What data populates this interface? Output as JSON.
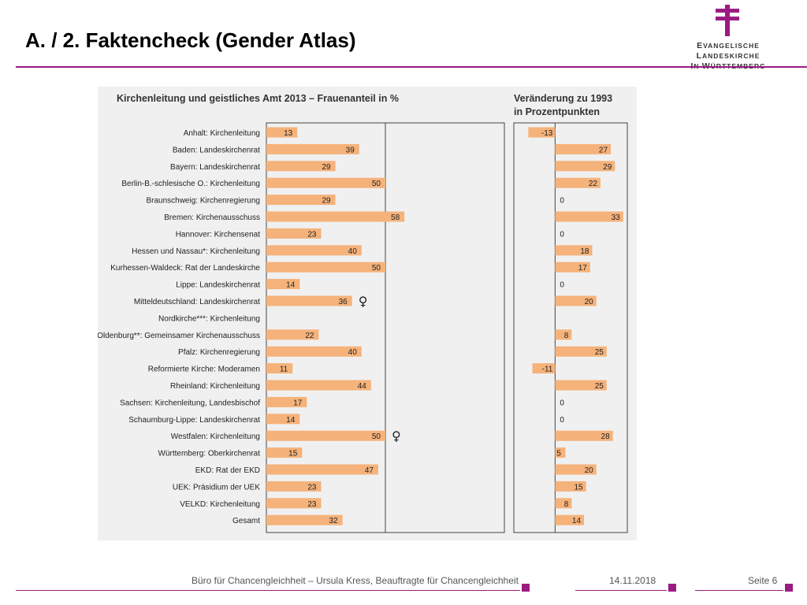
{
  "header": {
    "title": "A. / 2. Faktencheck (Gender Atlas)",
    "logo_line1_caps": [
      "E",
      "L"
    ],
    "logo_line1_rest": [
      "VANGELISCHE ",
      "ANDESKIRCHE"
    ],
    "logo_line2_caps": [
      "I",
      "W"
    ],
    "logo_line2_rest": [
      "N ",
      "ÜRTTEMBERG"
    ],
    "logo_color": "#9b1b82"
  },
  "chart_data": {
    "type": "bar",
    "left_title": "Kirchenleitung und geistliches Amt 2013 – Frauenanteil in %",
    "right_title_line1": "Veränderung zu 1993",
    "right_title_line2": "in Prozentpunkten",
    "bar_color": "#f5b27a",
    "categories": [
      "Anhalt: Kirchenleitung",
      "Baden: Landeskirchenrat",
      "Bayern: Landeskirchenrat",
      "Berlin-B.-schlesische O.: Kirchenleitung",
      "Braunschweig: Kirchenregierung",
      "Bremen: Kirchenausschuss",
      "Hannover: Kirchensenat",
      "Hessen und Nassau*: Kirchenleitung",
      "Kurhessen-Waldeck: Rat der Landeskirche",
      "Lippe: Landeskirchenrat",
      "Mitteldeutschland: Landeskirchenrat",
      "Nordkirche***: Kirchenleitung",
      "Oldenburg**: Gemeinsamer Kirchenausschuss",
      "Pfalz: Kirchenregierung",
      "Reformierte Kirche: Moderamen",
      "Rheinland: Kirchenleitung",
      "Sachsen: Kirchenleitung, Landesbischof",
      "Schaumburg-Lippe: Landeskirchenrat",
      "Westfalen: Kirchenleitung",
      "Württemberg: Oberkirchenrat",
      "EKD: Rat der EKD",
      "UEK: Präsidium der UEK",
      "VELKD: Kirchenleitung",
      "Gesamt"
    ],
    "series": [
      {
        "values": [
          13,
          39,
          29,
          50,
          29,
          58,
          23,
          40,
          50,
          14,
          36,
          null,
          22,
          40,
          11,
          44,
          17,
          14,
          50,
          15,
          47,
          23,
          23,
          32
        ],
        "labels": [
          "13",
          "39",
          "29",
          "50",
          "29",
          "58",
          "23",
          "40",
          "50",
          "14",
          "36",
          "",
          "22",
          "40",
          "11",
          "44",
          "17",
          "14",
          "50",
          "15",
          "47",
          "23",
          "23",
          "32"
        ]
      },
      {
        "values": [
          -13,
          27,
          29,
          22,
          0,
          33,
          0,
          18,
          17,
          0,
          20,
          null,
          8,
          25,
          -11,
          25,
          0,
          0,
          28,
          5,
          20,
          15,
          8,
          14
        ],
        "labels": [
          "-13",
          "27",
          "29",
          "22",
          "0",
          "33",
          "0",
          "18",
          "17",
          "0",
          "20",
          "",
          "8",
          "25",
          "-11",
          "25",
          "0",
          "0",
          "28",
          "5",
          "20",
          "15",
          "8",
          "14"
        ]
      }
    ],
    "left_xlim": [
      0,
      100
    ],
    "right_xlim": [
      -20,
      35
    ],
    "annotations": [
      {
        "category_index": 10,
        "symbol": "♀"
      },
      {
        "category_index": 18,
        "symbol": "♀"
      }
    ]
  },
  "footer": {
    "source": "Büro für Chancengleichheit – Ursula Kress, Beauftragte für Chancengleichheit",
    "date": "14.11.2018",
    "page": "Seite 6"
  }
}
